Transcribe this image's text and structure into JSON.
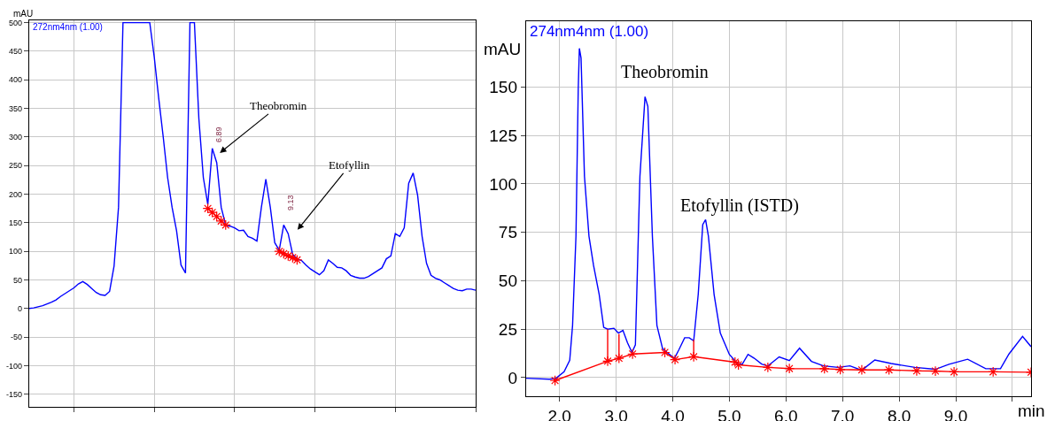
{
  "chart_data": [
    {
      "type": "line",
      "ylabel": "mAU",
      "categories": [
        null,
        null,
        null,
        null,
        null,
        null,
        null,
        null,
        null,
        null,
        null,
        null,
        null,
        null,
        null,
        null,
        null,
        null,
        null,
        null,
        null,
        null,
        null,
        null,
        null,
        null,
        null,
        null,
        null,
        null,
        null,
        null,
        null,
        null,
        null,
        null,
        null,
        null,
        null,
        null,
        null,
        null,
        null,
        null,
        null,
        null,
        null,
        null,
        null,
        null,
        null,
        null,
        null,
        null,
        null,
        null,
        null,
        null,
        null,
        null,
        null,
        null,
        null,
        null,
        null,
        null,
        null,
        null,
        null,
        null,
        null,
        null,
        null,
        null,
        null,
        null,
        null,
        null,
        null,
        null,
        null,
        null,
        null,
        null,
        null,
        null,
        null,
        null,
        null,
        null,
        null,
        null,
        null,
        null,
        null,
        null,
        null,
        null,
        null,
        null,
        null
      ],
      "series": [
        {
          "name": "272nm4nm (1.00)",
          "color": "#0000ff",
          "values": [
            0,
            1,
            3,
            5,
            8,
            11,
            15,
            21,
            26,
            31,
            36,
            43,
            47,
            42,
            35,
            28,
            24,
            23,
            30,
            74,
            177,
            500,
            500,
            500,
            500,
            500,
            500,
            500,
            440,
            368,
            301,
            229,
            177,
            136,
            76,
            62,
            500,
            500,
            332,
            229,
            182,
            280,
            255,
            177,
            146,
            144,
            141,
            136,
            137,
            126,
            123,
            118,
            177,
            226,
            177,
            115,
            102,
            146,
            131,
            95,
            87,
            84,
            76,
            69,
            64,
            59,
            66,
            85,
            79,
            72,
            71,
            66,
            58,
            55,
            53,
            53,
            56,
            61,
            66,
            71,
            87,
            92,
            131,
            126,
            141,
            219,
            237,
            198,
            126,
            79,
            58,
            53,
            50,
            45,
            40,
            35,
            32,
            31,
            34,
            34,
            32
          ]
        },
        {
          "color": "#ff0000",
          "marker": "cross",
          "values": [
            null,
            null,
            null,
            null,
            null,
            null,
            null,
            null,
            null,
            null,
            null,
            null,
            null,
            null,
            null,
            null,
            null,
            null,
            null,
            null,
            null,
            null,
            null,
            null,
            null,
            null,
            null,
            null,
            null,
            null,
            null,
            null,
            null,
            null,
            null,
            null,
            null,
            null,
            null,
            null,
            175,
            168,
            161,
            153,
            146,
            null,
            null,
            null,
            null,
            null,
            null,
            null,
            null,
            null,
            null,
            null,
            null,
            null,
            null,
            null,
            null,
            null,
            null,
            null,
            null,
            null,
            null,
            null,
            null,
            null,
            null,
            null,
            null,
            null,
            null,
            null,
            null,
            null,
            null,
            null,
            null,
            null,
            null,
            null,
            null,
            null,
            null,
            null,
            null,
            null,
            null,
            null,
            null,
            null,
            null,
            null,
            null,
            null,
            null,
            null,
            null
          ]
        },
        {
          "color": "#ff0000",
          "marker": "cross",
          "values": [
            null,
            null,
            null,
            null,
            null,
            null,
            null,
            null,
            null,
            null,
            null,
            null,
            null,
            null,
            null,
            null,
            null,
            null,
            null,
            null,
            null,
            null,
            null,
            null,
            null,
            null,
            null,
            null,
            null,
            null,
            null,
            null,
            null,
            null,
            null,
            null,
            null,
            null,
            null,
            null,
            null,
            null,
            null,
            null,
            null,
            null,
            null,
            null,
            null,
            null,
            null,
            null,
            null,
            null,
            null,
            null,
            100,
            96,
            92,
            89,
            85,
            null,
            null,
            null,
            null,
            null,
            null,
            null,
            null,
            null,
            null,
            null,
            null,
            null,
            null,
            null,
            null,
            null,
            null,
            null,
            null,
            null,
            null,
            null,
            null,
            null,
            null,
            null,
            null,
            null,
            null,
            null,
            null,
            null,
            null,
            null,
            null,
            null,
            null,
            null,
            null
          ]
        }
      ],
      "ylim": [
        -172,
        504
      ],
      "yticks": [
        -150,
        -100,
        -50,
        0,
        50,
        100,
        150,
        200,
        250,
        300,
        350,
        400,
        450,
        500
      ],
      "grid": true,
      "tick_labels": "y",
      "marker": "none",
      "annotations": [
        "Theobromin",
        "Etofyllin",
        "6.89",
        "9.13"
      ]
    },
    {
      "type": "line",
      "ylabel": "mAU",
      "xlabel": "min",
      "x": [
        1.41,
        1.82,
        1.93,
        2.08,
        2.18,
        2.23,
        2.29,
        2.33,
        2.35,
        2.38,
        2.44,
        2.52,
        2.6,
        2.7,
        2.78,
        2.85,
        2.96,
        3.04,
        3.12,
        3.2,
        3.28,
        3.34,
        3.42,
        3.51,
        3.56,
        3.64,
        3.72,
        3.82,
        3.9,
        4.03,
        4.11,
        4.21,
        4.29,
        4.37,
        4.45,
        4.53,
        4.58,
        4.63,
        4.73,
        4.84,
        5.0,
        5.15,
        5.23,
        5.33,
        5.44,
        5.57,
        5.68,
        5.88,
        6.06,
        6.24,
        6.45,
        6.66,
        6.92,
        7.13,
        7.34,
        7.57,
        7.86,
        8.28,
        8.64,
        8.88,
        9.21,
        9.53,
        9.79,
        9.94,
        10.18,
        10.33
      ],
      "series": [
        {
          "name": "274nm4nm (1.00)",
          "color": "#0000ff",
          "values": [
            -0.3,
            -0.8,
            -0.5,
            3,
            9,
            27,
            73,
            149,
            170,
            165,
            104,
            73,
            58,
            43,
            26,
            25,
            25.5,
            23,
            24.4,
            18,
            13,
            17,
            104,
            145,
            140,
            73,
            27,
            15,
            13,
            10,
            14.5,
            20.6,
            20.6,
            19,
            43,
            79,
            81.6,
            73,
            43,
            23,
            12,
            7,
            7,
            12,
            10,
            7,
            6,
            10.7,
            8.8,
            15.2,
            8.4,
            6.1,
            5.3,
            6.1,
            3.8,
            9.1,
            7.3,
            5.3,
            4.3,
            6.9,
            9.5,
            4.6,
            4.6,
            12.2,
            21.3,
            16
          ]
        },
        {
          "color": "#ff0000",
          "marker": "cross",
          "x": [
            1.92,
            2.85,
            3.05,
            3.29,
            3.86,
            4.04,
            4.37,
            5.1,
            5.16,
            5.68,
            6.06,
            6.68,
            6.96,
            7.34,
            7.82,
            8.31,
            8.64,
            8.97,
            9.66,
            10.33
          ],
          "values": [
            -1.5,
            8.5,
            10,
            12.2,
            13,
            9.3,
            10.8,
            8,
            6.6,
            5.3,
            4.7,
            4.6,
            4.2,
            4,
            4,
            3.5,
            3.4,
            3,
            3,
            2.8
          ]
        },
        {
          "color": "#ff0000",
          "x": [
            2.85,
            2.85
          ],
          "values": [
            8.5,
            25
          ]
        },
        {
          "color": "#ff0000",
          "x": [
            3.05,
            3.05
          ],
          "values": [
            10,
            22.5
          ]
        },
        {
          "color": "#ff0000",
          "x": [
            4.37,
            4.37
          ],
          "values": [
            10.8,
            19.5
          ]
        }
      ],
      "xlim": [
        1.41,
        10.33
      ],
      "ylim": [
        -9.6,
        184
      ],
      "xticks": [
        {
          "value": 2,
          "label": "2.0"
        },
        {
          "value": 3,
          "label": "3.0"
        },
        {
          "value": 4,
          "label": "4.0"
        },
        {
          "value": 5,
          "label": "5.0"
        },
        {
          "value": 6,
          "label": "6.0"
        },
        {
          "value": 7,
          "label": "7.0"
        },
        {
          "value": 8,
          "label": "8.0"
        },
        {
          "value": 9,
          "label": "9.0"
        },
        {
          "value": 10,
          "label": null
        }
      ],
      "yticks": [
        0,
        25,
        50,
        75,
        100,
        125,
        150
      ],
      "grid": true,
      "marker": "none",
      "annotations": [
        {
          "text": "Theobromin",
          "x": 3.51,
          "y": 145
        },
        {
          "text": "Etofyllin (ISTD)",
          "x": 4.58,
          "y": 81.6
        }
      ]
    }
  ]
}
